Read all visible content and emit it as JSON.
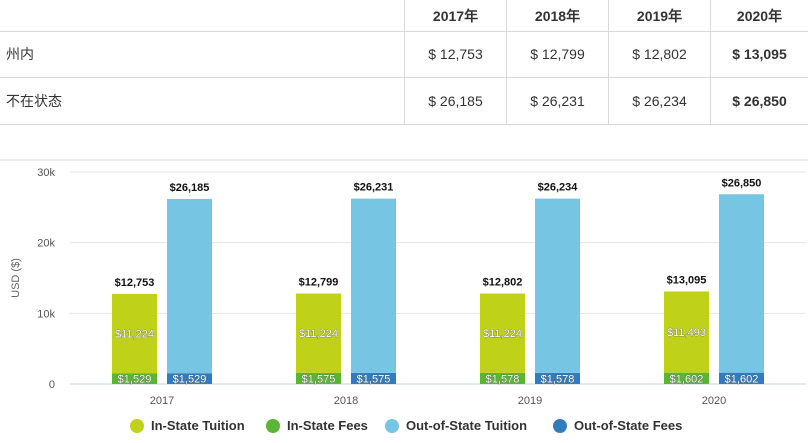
{
  "table": {
    "columns": [
      "2017年",
      "2018年",
      "2019年",
      "2020年"
    ],
    "rows": [
      {
        "label": "州内",
        "values": [
          "$ 12,753",
          "$ 12,799",
          "$ 12,802",
          "$ 13,095"
        ]
      },
      {
        "label": "不在状态",
        "values": [
          "$ 26,185",
          "$ 26,231",
          "$ 26,234",
          "$ 26,850"
        ]
      }
    ]
  },
  "colors": {
    "in_state_tuition": "#bfd118",
    "in_state_fees": "#5bb534",
    "out_state_tuition": "#76c5e2",
    "out_state_fees": "#2f7dbf"
  },
  "chart_data": {
    "type": "bar",
    "stacked": true,
    "categories": [
      "2017",
      "2018",
      "2019",
      "2020"
    ],
    "ylabel": "USD ($)",
    "ylim": [
      0,
      30000
    ],
    "yticks": [
      0,
      10000,
      20000,
      30000
    ],
    "ytick_labels": [
      "0",
      "10k",
      "20k",
      "30k"
    ],
    "grid": true,
    "legend_position": "bottom",
    "stacks": [
      {
        "stack": "in-state",
        "total_labels": [
          "$12,753",
          "$12,799",
          "$12,802",
          "$13,095"
        ],
        "series": [
          {
            "name": "In-State Tuition",
            "values": [
              11224,
              11224,
              11224,
              11493
            ],
            "labels": [
              "$11,224",
              "$11,224",
              "$11,224",
              "$11,493"
            ]
          },
          {
            "name": "In-State Fees",
            "values": [
              1529,
              1575,
              1578,
              1602
            ],
            "labels": [
              "$1,529",
              "$1,575",
              "$1,578",
              "$1,602"
            ]
          }
        ]
      },
      {
        "stack": "out-of-state",
        "total_labels": [
          "$26,185",
          "$26,231",
          "$26,234",
          "$26,850"
        ],
        "series": [
          {
            "name": "Out-of-State Tuition",
            "values": [
              24656,
              24656,
              24656,
              25248
            ],
            "labels": [
              "",
              "",
              "",
              ""
            ]
          },
          {
            "name": "Out-of-State Fees",
            "values": [
              1529,
              1575,
              1578,
              1602
            ],
            "labels": [
              "$1,529",
              "$1,575",
              "$1,578",
              "$1,602"
            ]
          }
        ]
      }
    ],
    "legend": [
      "In-State Tuition",
      "In-State Fees",
      "Out-of-State Tuition",
      "Out-of-State Fees"
    ]
  }
}
